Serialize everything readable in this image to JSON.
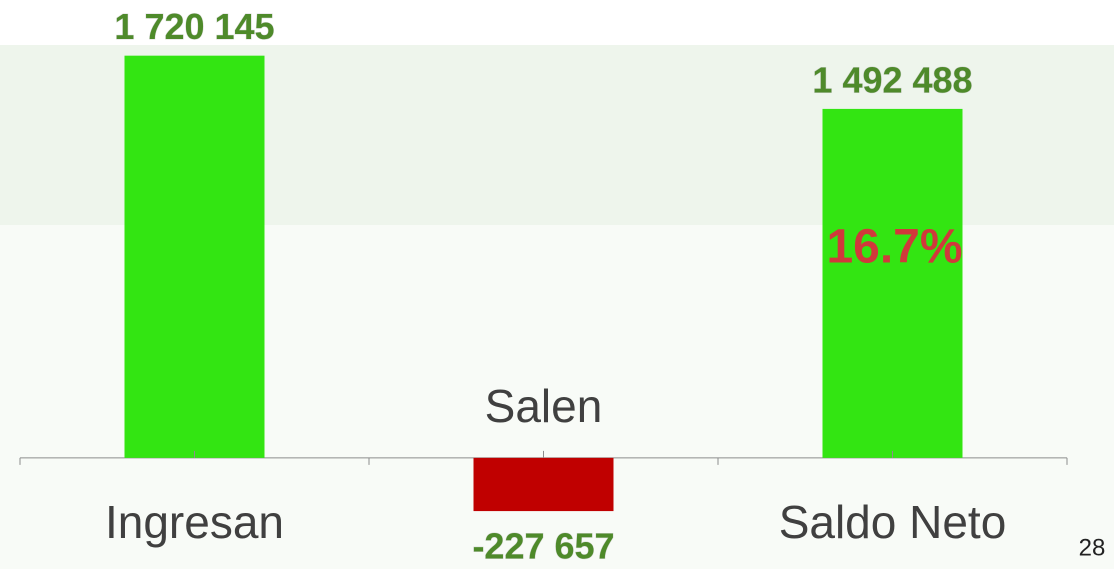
{
  "chart_data": {
    "type": "bar",
    "categories": [
      "Ingresan",
      "Salen",
      "Saldo Neto"
    ],
    "values": [
      1720145,
      -227657,
      1492488
    ],
    "value_labels": [
      "1 720 145",
      "-227 657",
      "1 492 488"
    ],
    "colors": [
      "#33e512",
      "#c00000",
      "#33e512"
    ],
    "ylim": [
      -300000,
      1800000
    ],
    "annotation": "16.7%",
    "page_number": "28"
  }
}
